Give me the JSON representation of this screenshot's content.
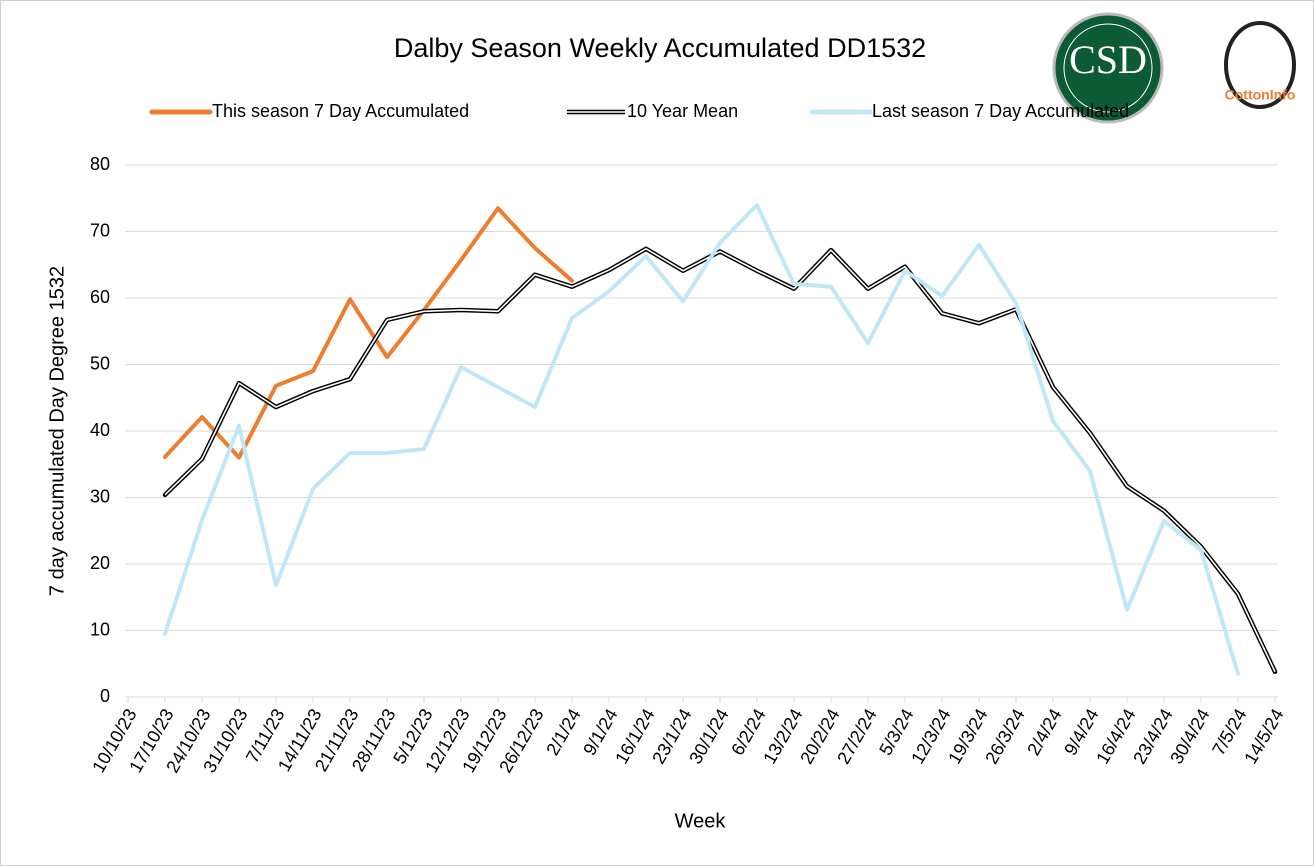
{
  "chart_data": {
    "type": "line",
    "title": "Dalby Season Weekly Accumulated DD1532",
    "xlabel": "Week",
    "ylabel": "7 day accumulated Day Degree 1532",
    "logos": [
      "CSD",
      "CottonInfo"
    ],
    "categories": [
      "10/10/23",
      "17/10/23",
      "24/10/23",
      "31/10/23",
      "7/11/23",
      "14/11/23",
      "21/11/23",
      "28/11/23",
      "5/12/23",
      "12/12/23",
      "19/12/23",
      "26/12/23",
      "2/1/24",
      "9/1/24",
      "16/1/24",
      "23/1/24",
      "30/1/24",
      "6/2/24",
      "13/2/24",
      "20/2/24",
      "27/2/24",
      "5/3/24",
      "12/3/24",
      "19/3/24",
      "26/3/24",
      "2/4/24",
      "9/4/24",
      "16/4/24",
      "23/4/24",
      "30/4/24",
      "7/5/24",
      "14/5/24"
    ],
    "series": [
      {
        "name": "This season 7 Day Accumulated",
        "color": "#ed7d31",
        "line_style": "solid",
        "values": [
          null,
          36.1,
          42.1,
          36,
          46.8,
          49,
          59.8,
          51.1,
          58.2,
          65.7,
          73.5,
          67.5,
          62.6,
          null,
          null,
          null,
          null,
          null,
          null,
          null,
          null,
          null,
          null,
          null,
          null,
          null,
          null,
          null,
          null,
          null,
          null,
          null
        ]
      },
      {
        "name": "10 Year Mean",
        "color": "#000000",
        "line_style": "double",
        "values": [
          null,
          30.4,
          35.8,
          47.2,
          43.6,
          46,
          47.8,
          56.7,
          58,
          58.2,
          58,
          63.5,
          61.7,
          64.2,
          67.4,
          64.1,
          67,
          64.1,
          61.4,
          67.2,
          61.4,
          64.7,
          57.7,
          56.2,
          58.3,
          46.6,
          39.7,
          31.7,
          28,
          22.6,
          15.5,
          3.8
        ]
      },
      {
        "name": "Last season 7 Day Accumulated",
        "color": "#bfe7f7",
        "line_style": "solid",
        "values": [
          null,
          9.5,
          26.6,
          40.8,
          16.8,
          31.3,
          36.7,
          36.7,
          37.3,
          49.6,
          46.6,
          43.6,
          57,
          61,
          66.3,
          59.5,
          68.3,
          74,
          62.1,
          61.7,
          53.2,
          64.1,
          60.3,
          68,
          59.2,
          41.5,
          34,
          13.1,
          26.5,
          22.1,
          3.5,
          null
        ]
      }
    ],
    "ylim": [
      0,
      80
    ],
    "yticks": [
      0,
      10,
      20,
      30,
      40,
      50,
      60,
      70,
      80
    ],
    "grid": true,
    "legend": "top"
  }
}
